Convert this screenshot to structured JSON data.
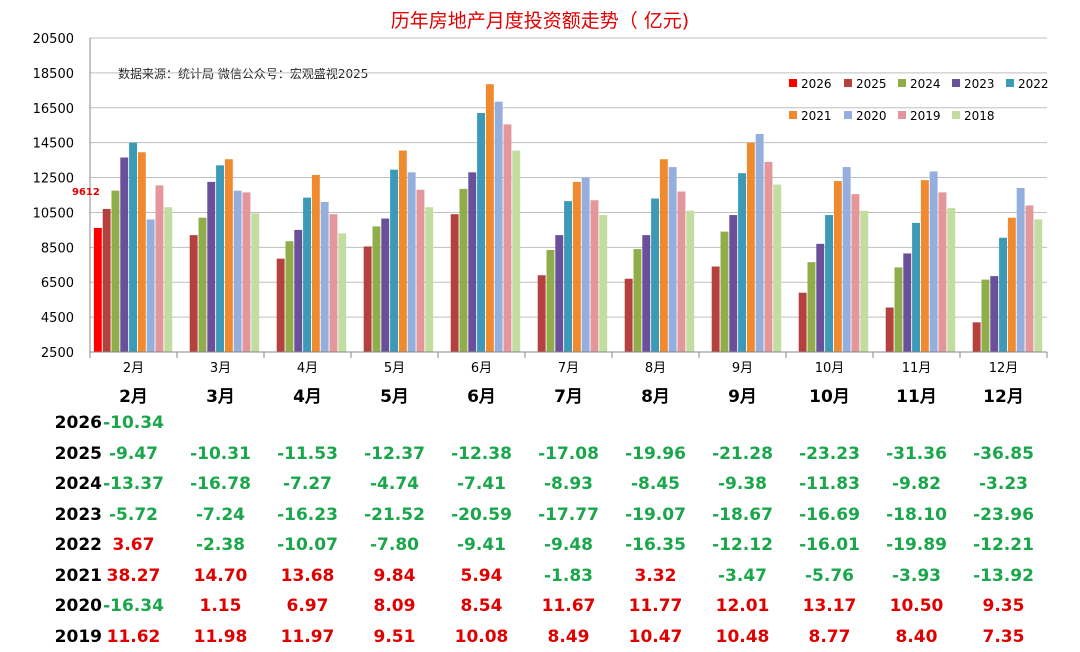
{
  "chart_data": {
    "type": "bar",
    "title": "历年房地产月度投资额走势（ 亿元)",
    "source_note": "数据来源：统计局  微信公众号：宏观盛视2025",
    "categories": [
      "2月",
      "3月",
      "4月",
      "5月",
      "6月",
      "7月",
      "8月",
      "9月",
      "10月",
      "11月",
      "12月"
    ],
    "ylim": [
      2500,
      20500
    ],
    "yticks": [
      2500,
      4500,
      6500,
      8500,
      10500,
      12500,
      14500,
      16500,
      18500,
      20500
    ],
    "grid": true,
    "legend_position": "top-right",
    "series": [
      {
        "name": "2026",
        "color": "#ff0000",
        "values": [
          9612,
          null,
          null,
          null,
          null,
          null,
          null,
          null,
          null,
          null,
          null
        ]
      },
      {
        "name": "2025",
        "color": "#b5413f",
        "values": [
          10700,
          9200,
          7850,
          8550,
          10400,
          6900,
          6700,
          7400,
          5900,
          5050,
          4200
        ]
      },
      {
        "name": "2024",
        "color": "#8fae4a",
        "values": [
          11750,
          10200,
          8850,
          9700,
          11850,
          8350,
          8400,
          9400,
          7650,
          7350,
          6650
        ]
      },
      {
        "name": "2023",
        "color": "#6a4f9a",
        "values": [
          13650,
          12250,
          9500,
          10150,
          12800,
          9200,
          9200,
          10350,
          8700,
          8150,
          6850
        ]
      },
      {
        "name": "2022",
        "color": "#3a9ab8",
        "values": [
          14500,
          13200,
          11350,
          12950,
          16200,
          11150,
          11300,
          12750,
          10350,
          9900,
          9050
        ]
      },
      {
        "name": "2021",
        "color": "#f08a2e",
        "values": [
          13950,
          13550,
          12650,
          14050,
          17850,
          12250,
          13550,
          14500,
          12300,
          12350,
          10200
        ]
      },
      {
        "name": "2020",
        "color": "#94aede",
        "values": [
          10100,
          11750,
          11100,
          12800,
          16850,
          12500,
          13100,
          15000,
          13100,
          12850,
          11900
        ]
      },
      {
        "name": "2019",
        "color": "#e3979a",
        "values": [
          12050,
          11650,
          10400,
          11800,
          15550,
          11200,
          11700,
          13400,
          11550,
          11650,
          10900
        ]
      },
      {
        "name": "2018",
        "color": "#c2dda0",
        "values": [
          10800,
          10450,
          9300,
          10800,
          14050,
          10350,
          10600,
          12100,
          10600,
          10750,
          10100
        ]
      }
    ],
    "data_labels": [
      {
        "series": "2026",
        "category": "2月",
        "text": "9612"
      }
    ],
    "table": {
      "header": [
        "2月",
        "3月",
        "4月",
        "5月",
        "6月",
        "7月",
        "8月",
        "9月",
        "10月",
        "11月",
        "12月"
      ],
      "rows": [
        {
          "label": "2026",
          "values": [
            "-10.34",
            "",
            "",
            "",
            "",
            "",
            "",
            "",
            "",
            "",
            ""
          ]
        },
        {
          "label": "2025",
          "values": [
            "-9.47",
            "-10.31",
            "-11.53",
            "-12.37",
            "-12.38",
            "-17.08",
            "-19.96",
            "-21.28",
            "-23.23",
            "-31.36",
            "-36.85"
          ]
        },
        {
          "label": "2024",
          "values": [
            "-13.37",
            "-16.78",
            "-7.27",
            "-4.74",
            "-7.41",
            "-8.93",
            "-8.45",
            "-9.38",
            "-11.83",
            "-9.82",
            "-3.23"
          ]
        },
        {
          "label": "2023",
          "values": [
            "-5.72",
            "-7.24",
            "-16.23",
            "-21.52",
            "-20.59",
            "-17.77",
            "-19.07",
            "-18.67",
            "-16.69",
            "-18.10",
            "-23.96"
          ]
        },
        {
          "label": "2022",
          "values": [
            "3.67",
            "-2.38",
            "-10.07",
            "-7.80",
            "-9.41",
            "-9.48",
            "-16.35",
            "-12.12",
            "-16.01",
            "-19.89",
            "-12.21"
          ]
        },
        {
          "label": "2021",
          "values": [
            "38.27",
            "14.70",
            "13.68",
            "9.84",
            "5.94",
            "-1.83",
            "3.32",
            "-3.47",
            "-5.76",
            "-3.93",
            "-13.92"
          ]
        },
        {
          "label": "2020",
          "values": [
            "-16.34",
            "1.15",
            "6.97",
            "8.09",
            "8.54",
            "11.67",
            "11.77",
            "12.01",
            "13.17",
            "10.50",
            "9.35"
          ]
        },
        {
          "label": "2019",
          "values": [
            "11.62",
            "11.98",
            "11.97",
            "9.51",
            "10.08",
            "8.49",
            "10.47",
            "10.48",
            "8.77",
            "8.40",
            "7.35"
          ]
        }
      ],
      "positive_color": "#e00000",
      "negative_color": "#1aa64a"
    }
  }
}
